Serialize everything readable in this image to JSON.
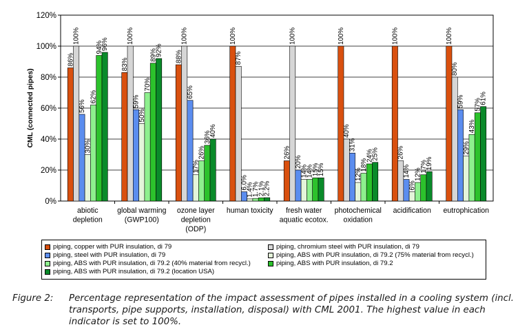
{
  "chart_data": {
    "type": "bar",
    "ylabel": "CML (connected pipes)",
    "ylim": [
      0,
      120
    ],
    "yticks": [
      "0%",
      "20%",
      "40%",
      "60%",
      "80%",
      "100%",
      "120%"
    ],
    "categories": [
      [
        "abiotic",
        "depletion"
      ],
      [
        "global warming",
        "(GWP100)"
      ],
      [
        "ozone layer",
        "depletion",
        "(ODP)"
      ],
      [
        "human toxicity"
      ],
      [
        "fresh water",
        "aquatic ecotox."
      ],
      [
        "photochemical",
        "oxidation"
      ],
      [
        "acidification"
      ],
      [
        "eutrophication"
      ]
    ],
    "series": [
      {
        "name": "piping, copper with PUR insulation, di 79",
        "color": "#d9500f",
        "values": [
          86,
          83,
          88,
          100,
          26,
          100,
          100,
          100
        ],
        "labels": [
          "86%",
          "83%",
          "88%",
          "100%",
          "26%",
          "100%",
          "100%",
          "100%"
        ]
      },
      {
        "name": "piping, chromium steel with PUR insulation, di 79",
        "color": "#d6d6d6",
        "values": [
          100,
          100,
          100,
          87,
          100,
          40,
          26,
          80
        ],
        "labels": [
          "100%",
          "100%",
          "100%",
          "87%",
          "100%",
          "40%",
          "26%",
          "80%"
        ]
      },
      {
        "name": "piping, steel with PUR insulation, di 79",
        "color": "#5b8def",
        "values": [
          56,
          59,
          65,
          6,
          20,
          31,
          14,
          59
        ],
        "labels": [
          "56%",
          "59%",
          "65%",
          "6.0%",
          "20%",
          "31%",
          "14%",
          "59%"
        ]
      },
      {
        "name": "piping, ABS with PUR insulation, di 79.2 (75% material from recycl.)",
        "color": "#e4f5da",
        "values": [
          30,
          50,
          17,
          1.4,
          14,
          12,
          6,
          29
        ],
        "labels": [
          "30%",
          "50%",
          "17%",
          "1.4%",
          "14%",
          "12%",
          "6%",
          "29%"
        ]
      },
      {
        "name": "piping, ABS with PUR insulation, di 79.2 (40% material from recycl.)",
        "color": "#8ef08e",
        "values": [
          62,
          70,
          26,
          1.7,
          14,
          18,
          12,
          43
        ],
        "labels": [
          "62%",
          "70%",
          "26%",
          "1.7%",
          "14%",
          "18%",
          "12%",
          "43%"
        ]
      },
      {
        "name": "piping, ABS with PUR insulation, di 79.2",
        "color": "#2cc22c",
        "values": [
          94,
          89,
          36,
          2.1,
          15,
          24,
          17,
          57
        ],
        "labels": [
          "94%",
          "89%",
          "36%",
          "2.1%",
          "15%",
          "24%",
          "17%",
          "57%"
        ]
      },
      {
        "name": "piping, ABS with PUR insulation, di 79.2 (location USA)",
        "color": "#0a8a2a",
        "values": [
          96,
          92,
          40,
          2.2,
          15,
          25,
          19,
          61
        ],
        "labels": [
          "96%",
          "92%",
          "40%",
          "2.2%",
          "15%",
          "25%",
          "19%",
          "61%"
        ]
      }
    ]
  },
  "legend": [
    {
      "label": "piping, copper with PUR insulation, di 79",
      "color": "#d9500f"
    },
    {
      "label": "piping, chromium steel with PUR insulation, di 79",
      "color": "#d6d6d6"
    },
    {
      "label": "piping, steel with PUR insulation, di 79",
      "color": "#5b8def"
    },
    {
      "label": "piping, ABS with PUR insulation, di 79.2 (75% material from recycl.)",
      "color": "#e4f5da"
    },
    {
      "label": "piping, ABS with PUR insulation, di 79.2 (40% material from recycl.)",
      "color": "#8ef08e"
    },
    {
      "label": "piping, ABS with PUR insulation, di 79.2",
      "color": "#2cc22c"
    },
    {
      "label": "piping, ABS with PUR insulation, di 79.2 (location USA)",
      "color": "#0a8a2a"
    }
  ],
  "caption": {
    "label": "Figure 2:",
    "text": "Percentage representation of the impact assessment of pipes installed in a cooling system (incl. transports, pipe supports, installation, disposal) with CML 2001. The highest value in each indicator is set to 100%."
  }
}
